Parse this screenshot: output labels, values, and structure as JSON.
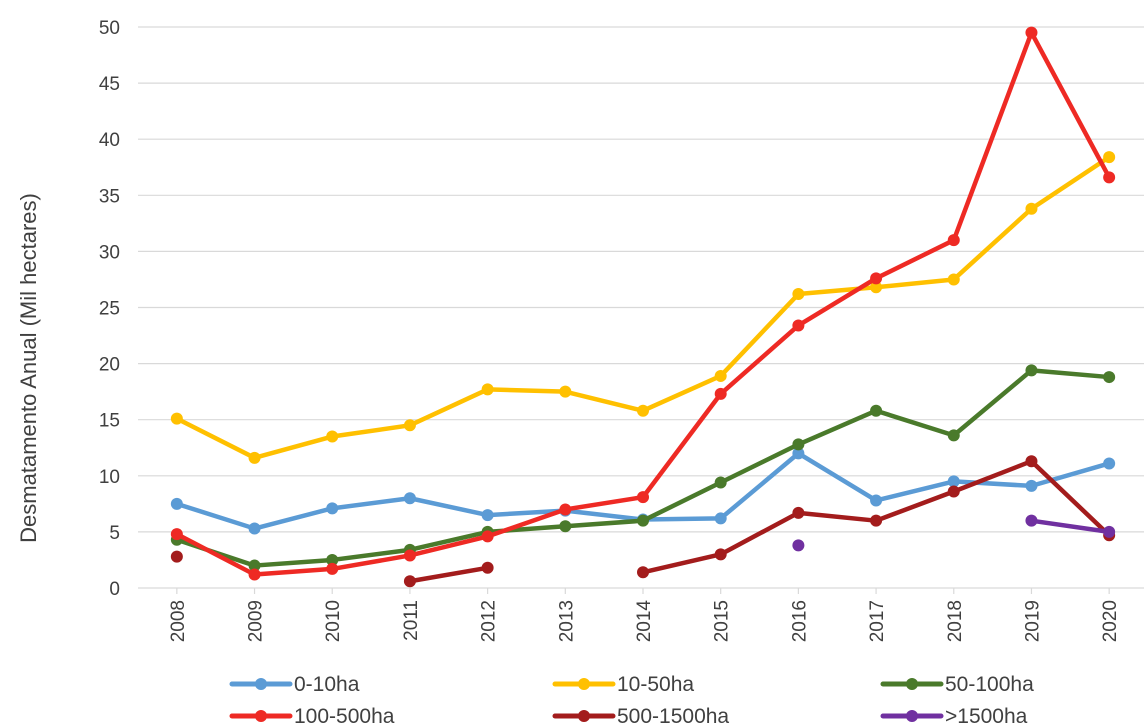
{
  "chart_data": {
    "type": "line",
    "title": "",
    "xlabel": "",
    "ylabel": "Desmatamento Anual (Mil hectares)",
    "ylim": [
      0,
      50
    ],
    "yticks": [
      "0",
      "5",
      "10",
      "15",
      "20",
      "25",
      "30",
      "35",
      "40",
      "45",
      "50"
    ],
    "categories": [
      "2008",
      "2009",
      "2010",
      "2011",
      "2012",
      "2013",
      "2014",
      "2015",
      "2016",
      "2017",
      "2018",
      "2019",
      "2020"
    ],
    "grid": true,
    "legend_position": "bottom",
    "series": [
      {
        "name": "0-10ha",
        "color": "#5B9BD5",
        "values": [
          7.5,
          5.3,
          7.1,
          8.0,
          6.5,
          6.9,
          6.1,
          6.2,
          12.0,
          7.8,
          9.5,
          9.1,
          11.1
        ]
      },
      {
        "name": "10-50ha",
        "color": "#FFC000",
        "values": [
          15.1,
          11.6,
          13.5,
          14.5,
          17.7,
          17.5,
          15.8,
          18.9,
          26.2,
          26.8,
          27.5,
          33.8,
          38.4
        ]
      },
      {
        "name": "50-100ha",
        "color": "#4A7A2B",
        "values": [
          4.3,
          2.0,
          2.5,
          3.4,
          5.0,
          5.5,
          6.0,
          9.4,
          12.8,
          15.8,
          13.6,
          19.4,
          18.8
        ]
      },
      {
        "name": "100-500ha",
        "color": "#EE2A24",
        "values": [
          4.8,
          1.2,
          1.7,
          2.9,
          4.6,
          7.0,
          8.1,
          17.3,
          23.4,
          27.6,
          31.0,
          49.5,
          36.6
        ]
      },
      {
        "name": "500-1500ha",
        "color": "#A31C1C",
        "values": [
          2.8,
          null,
          null,
          0.6,
          1.8,
          null,
          1.4,
          3.0,
          6.7,
          6.0,
          8.6,
          11.3,
          4.7
        ]
      },
      {
        "name": ">1500ha",
        "color": "#7030A0",
        "values": [
          null,
          null,
          null,
          null,
          null,
          null,
          null,
          null,
          3.8,
          null,
          null,
          6.0,
          5.0
        ]
      }
    ]
  }
}
